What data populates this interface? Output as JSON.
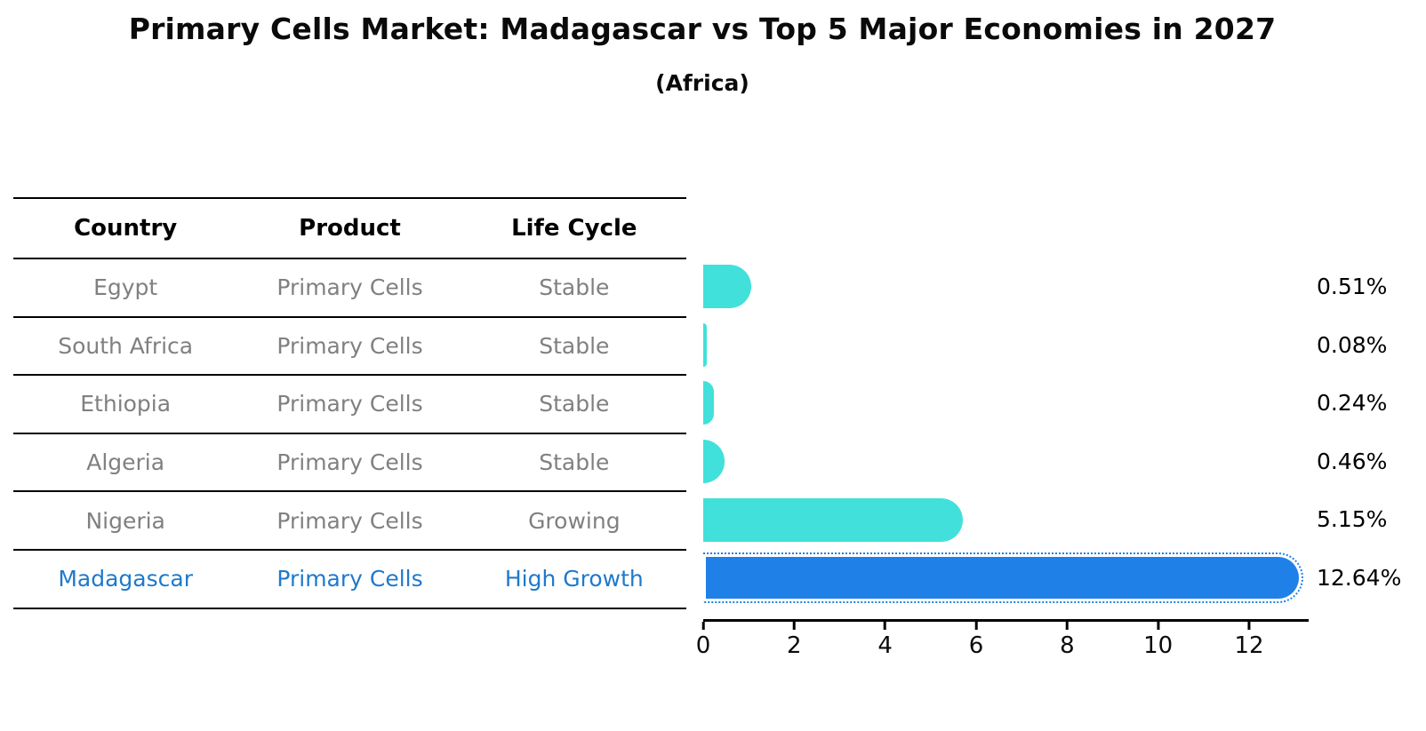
{
  "title": "Primary Cells Market: Madagascar vs Top 5 Major Economies in 2027",
  "subtitle": "(Africa)",
  "table": {
    "headers": [
      "Country",
      "Product",
      "Life Cycle"
    ],
    "rows": [
      {
        "country": "Egypt",
        "product": "Primary Cells",
        "life_cycle": "Stable",
        "highlight": false
      },
      {
        "country": "South Africa",
        "product": "Primary Cells",
        "life_cycle": "Stable",
        "highlight": false
      },
      {
        "country": "Ethiopia",
        "product": "Primary Cells",
        "life_cycle": "Stable",
        "highlight": false
      },
      {
        "country": "Algeria",
        "product": "Primary Cells",
        "life_cycle": "Stable",
        "highlight": false
      },
      {
        "country": "Nigeria",
        "product": "Primary Cells",
        "life_cycle": "Growing",
        "highlight": false
      },
      {
        "country": "Madagascar",
        "product": "Primary Cells",
        "life_cycle": "High Growth",
        "highlight": true
      }
    ]
  },
  "chart_data": {
    "type": "bar",
    "orientation": "horizontal",
    "title": "Primary Cells Market: Madagascar vs Top 5 Major Economies in 2027",
    "subtitle": "(Africa)",
    "categories": [
      "Egypt",
      "South Africa",
      "Ethiopia",
      "Algeria",
      "Nigeria",
      "Madagascar"
    ],
    "values": [
      0.51,
      0.08,
      0.24,
      0.46,
      5.15,
      12.64
    ],
    "value_labels": [
      "0.51%",
      "0.08%",
      "0.24%",
      "0.46%",
      "5.15%",
      "12.64%"
    ],
    "x_ticks": [
      0,
      2,
      4,
      6,
      8,
      10,
      12
    ],
    "xlim": [
      0,
      13.27
    ],
    "xlabel": "",
    "ylabel": "",
    "grid": false,
    "legend": false,
    "bar_colors": [
      "#42e0da",
      "#42e0da",
      "#42e0da",
      "#42e0da",
      "#42e0da",
      "#1f80e8"
    ],
    "highlight_index": 5
  },
  "colors": {
    "bar_default": "#42e0da",
    "bar_highlight": "#1f80e8",
    "highlight_text": "#1f79cc",
    "table_text": "#808080",
    "axis": "#000000"
  }
}
